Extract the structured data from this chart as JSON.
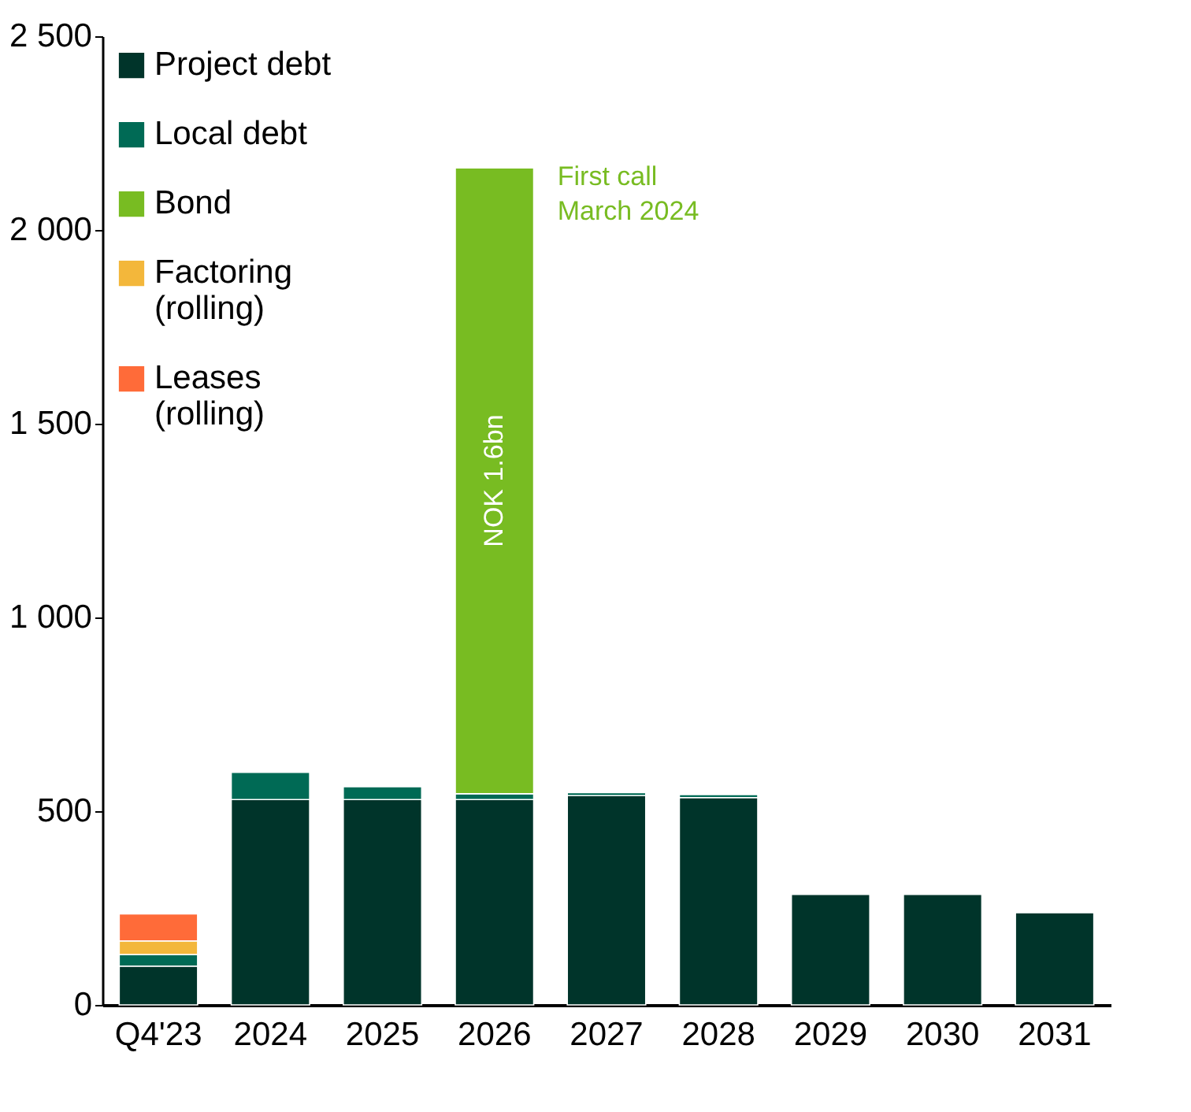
{
  "chart_data": {
    "type": "bar",
    "stacked": true,
    "categories": [
      "Q4'23",
      "2024",
      "2025",
      "2026",
      "2027",
      "2028",
      "2029",
      "2030",
      "2031"
    ],
    "series": [
      {
        "name": "Project debt",
        "color": "#00342a",
        "values": [
          100,
          530,
          530,
          530,
          540,
          535,
          285,
          285,
          238
        ]
      },
      {
        "name": "Local debt",
        "color": "#006a55",
        "values": [
          30,
          70,
          33,
          15,
          8,
          8,
          null,
          null,
          null
        ]
      },
      {
        "name": "Bond",
        "color": "#78bc22",
        "values": [
          null,
          null,
          null,
          1615,
          null,
          null,
          null,
          null,
          null
        ]
      },
      {
        "name": "Factoring\n(rolling)",
        "color": "#f3b73b",
        "values": [
          35,
          null,
          null,
          null,
          null,
          null,
          null,
          null,
          null
        ]
      },
      {
        "name": "Leases\n(rolling)",
        "color": "#ff6b39",
        "values": [
          70,
          null,
          null,
          null,
          null,
          null,
          null,
          null,
          null
        ]
      }
    ],
    "ylim": [
      0,
      2500
    ],
    "yticks": [
      0,
      {
        "value": 500,
        "label": "500"
      },
      {
        "value": 1000,
        "label": "1 000"
      },
      {
        "value": 1500,
        "label": "1 500"
      },
      {
        "value": 2000,
        "label": "2 000"
      },
      {
        "value": 2500,
        "label": "2 500"
      }
    ],
    "grid": false,
    "legend": "top left",
    "annotations": [
      "NOK 1.6bn",
      {
        "text": "First call\nMarch 2024",
        "x": "2026",
        "y": 2160
      }
    ]
  }
}
